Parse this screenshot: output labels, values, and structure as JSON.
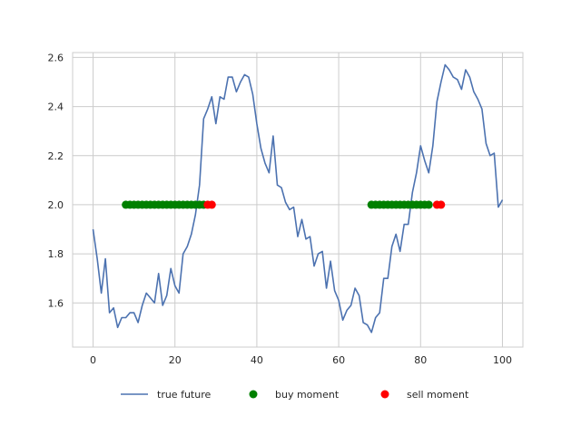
{
  "chart_data": {
    "type": "line",
    "title": "",
    "xlabel": "",
    "ylabel": "",
    "xlim": [
      -5,
      105
    ],
    "ylim": [
      1.42,
      2.62
    ],
    "xticks": [
      0,
      20,
      40,
      60,
      80,
      100
    ],
    "yticks": [
      1.6,
      1.8,
      2.0,
      2.2,
      2.4,
      2.6
    ],
    "grid": true,
    "legend_position": "bottom-center",
    "series": [
      {
        "name": "true future",
        "type": "line",
        "color": "#4c72b0",
        "x": [
          0,
          1,
          2,
          3,
          4,
          5,
          6,
          7,
          8,
          9,
          10,
          11,
          12,
          13,
          14,
          15,
          16,
          17,
          18,
          19,
          20,
          21,
          22,
          23,
          24,
          25,
          26,
          27,
          28,
          29,
          30,
          31,
          32,
          33,
          34,
          35,
          36,
          37,
          38,
          39,
          40,
          41,
          42,
          43,
          44,
          45,
          46,
          47,
          48,
          49,
          50,
          51,
          52,
          53,
          54,
          55,
          56,
          57,
          58,
          59,
          60,
          61,
          62,
          63,
          64,
          65,
          66,
          67,
          68,
          69,
          70,
          71,
          72,
          73,
          74,
          75,
          76,
          77,
          78,
          79,
          80,
          81,
          82,
          83,
          84,
          85,
          86,
          87,
          88,
          89,
          90,
          91,
          92,
          93,
          94,
          95,
          96,
          97,
          98,
          99,
          100
        ],
        "y": [
          1.9,
          1.78,
          1.64,
          1.78,
          1.56,
          1.58,
          1.5,
          1.54,
          1.54,
          1.56,
          1.56,
          1.52,
          1.59,
          1.64,
          1.62,
          1.6,
          1.72,
          1.59,
          1.63,
          1.74,
          1.67,
          1.64,
          1.8,
          1.83,
          1.88,
          1.96,
          2.08,
          2.35,
          2.39,
          2.44,
          2.33,
          2.44,
          2.43,
          2.52,
          2.52,
          2.46,
          2.5,
          2.53,
          2.52,
          2.45,
          2.33,
          2.23,
          2.17,
          2.13,
          2.28,
          2.08,
          2.07,
          2.01,
          1.98,
          1.99,
          1.87,
          1.94,
          1.86,
          1.87,
          1.75,
          1.8,
          1.81,
          1.66,
          1.77,
          1.65,
          1.61,
          1.53,
          1.57,
          1.59,
          1.66,
          1.63,
          1.52,
          1.51,
          1.48,
          1.54,
          1.56,
          1.7,
          1.7,
          1.83,
          1.88,
          1.81,
          1.92,
          1.92,
          2.05,
          2.13,
          2.24,
          2.18,
          2.13,
          2.24,
          2.42,
          2.5,
          2.57,
          2.55,
          2.52,
          2.51,
          2.47,
          2.55,
          2.52,
          2.46,
          2.43,
          2.39,
          2.25,
          2.2,
          2.21,
          1.99,
          2.02
        ]
      },
      {
        "name": "buy moment",
        "type": "scatter",
        "color": "#008000",
        "x": [
          8,
          9,
          10,
          11,
          12,
          13,
          14,
          15,
          16,
          17,
          18,
          19,
          20,
          21,
          22,
          23,
          24,
          25,
          26,
          27,
          68,
          69,
          70,
          71,
          72,
          73,
          74,
          75,
          76,
          77,
          78,
          79,
          80,
          81,
          82
        ],
        "y": [
          2.0,
          2.0,
          2.0,
          2.0,
          2.0,
          2.0,
          2.0,
          2.0,
          2.0,
          2.0,
          2.0,
          2.0,
          2.0,
          2.0,
          2.0,
          2.0,
          2.0,
          2.0,
          2.0,
          2.0,
          2.0,
          2.0,
          2.0,
          2.0,
          2.0,
          2.0,
          2.0,
          2.0,
          2.0,
          2.0,
          2.0,
          2.0,
          2.0,
          2.0,
          2.0
        ]
      },
      {
        "name": "sell moment",
        "type": "scatter",
        "color": "#ff0000",
        "x": [
          28,
          29,
          84,
          85
        ],
        "y": [
          2.0,
          2.0,
          2.0,
          2.0
        ]
      }
    ]
  }
}
